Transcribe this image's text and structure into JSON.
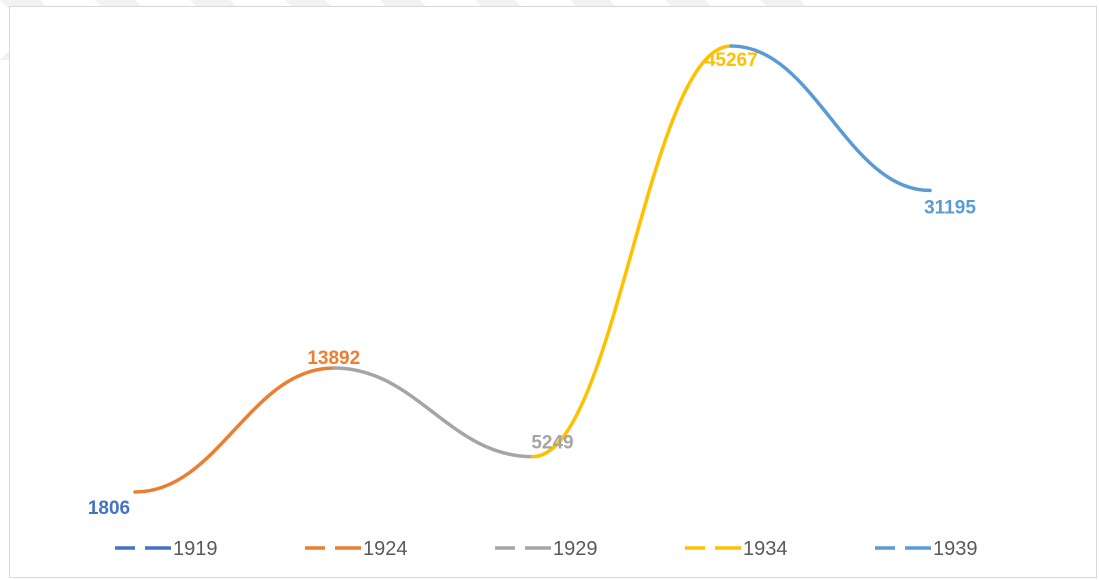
{
  "chart_data": {
    "type": "line",
    "title": "",
    "xlabel": "",
    "ylabel": "",
    "x": [
      "1919",
      "1924",
      "1929",
      "1934",
      "1939"
    ],
    "values": [
      1806,
      13892,
      5249,
      45267,
      31195
    ],
    "ylim": [
      0,
      48000
    ],
    "grid": false,
    "legend_position": "bottom",
    "series": [
      {
        "name": "1919",
        "color": "#4472c4"
      },
      {
        "name": "1924",
        "color": "#ed7d31"
      },
      {
        "name": "1929",
        "color": "#a5a5a5"
      },
      {
        "name": "1934",
        "color": "#ffc000"
      },
      {
        "name": "1939",
        "color": "#5b9bd5"
      }
    ],
    "data_labels": [
      {
        "text": "1806",
        "color": "#4472c4"
      },
      {
        "text": "13892",
        "color": "#ed7d31"
      },
      {
        "text": "5249",
        "color": "#a5a5a5"
      },
      {
        "text": "45267",
        "color": "#ffc000"
      },
      {
        "text": "31195",
        "color": "#5b9bd5"
      }
    ]
  }
}
